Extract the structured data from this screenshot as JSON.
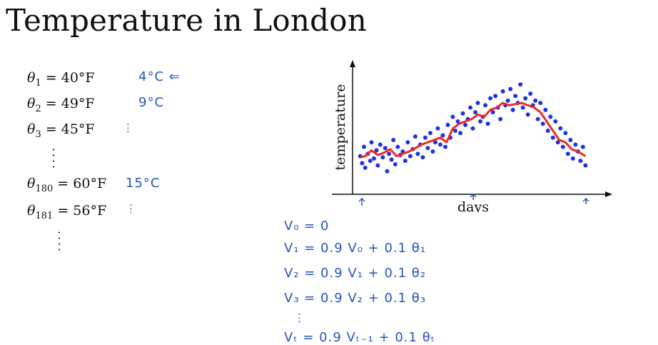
{
  "slide": {
    "title": "Temperature in London",
    "equations": [
      {
        "sym": "θ",
        "sub": "1",
        "rhs": "= 40°F",
        "note": "4°C ⇐"
      },
      {
        "sym": "θ",
        "sub": "2",
        "rhs": "= 49°F",
        "note": "9°C"
      },
      {
        "sym": "θ",
        "sub": "3",
        "rhs": "= 45°F",
        "note": "⋮"
      },
      {
        "sym": "θ",
        "sub": "180",
        "rhs": "= 60°F",
        "note": "15°C"
      },
      {
        "sym": "θ",
        "sub": "181",
        "rhs": "= 56°F",
        "note": "⋮"
      }
    ],
    "handwritten_formulas": [
      "V₀ = 0",
      "V₁ = 0.9 V₀    + 0.1 θ₁",
      "V₂ = 0.9 V₁    + 0.1 θ₂",
      "V₃ = 0.9 V₂    + 0.1 θ₃",
      "⋮",
      "Vₜ = 0.9 Vₜ₋₁  + 0.1 θₜ"
    ]
  },
  "chart_data": {
    "type": "scatter",
    "xlabel": "days",
    "ylabel": "temperature",
    "xlim": [
      0,
      365
    ],
    "ylim": [
      0,
      100
    ],
    "colors": {
      "points": "#1f35e0",
      "line": "#ee2a1f",
      "annotation": "#2a55b8"
    },
    "series": [
      {
        "values_x": [
          2,
          5,
          8,
          10,
          14,
          18,
          20,
          24,
          28,
          30,
          34,
          38,
          42,
          45,
          48,
          52,
          55,
          58,
          62,
          66,
          70,
          74,
          78,
          82,
          86,
          90,
          94,
          98,
          102,
          106,
          110,
          114,
          118,
          122,
          126,
          130,
          134,
          138,
          142,
          146,
          150,
          154,
          158,
          162,
          166,
          170,
          174,
          178,
          182,
          186,
          190,
          194,
          198,
          202,
          206,
          210,
          214,
          218,
          222,
          226,
          230,
          234,
          238,
          242,
          246,
          250,
          254,
          258,
          262,
          266,
          270,
          274,
          278,
          282,
          286,
          290,
          294,
          298,
          302,
          306,
          310,
          314,
          318,
          322,
          326,
          330,
          334,
          338,
          342,
          346,
          350,
          354,
          358,
          362
        ],
        "values_y": [
          28,
          22,
          36,
          18,
          30,
          24,
          40,
          26,
          33,
          20,
          38,
          27,
          35,
          15,
          30,
          25,
          42,
          21,
          36,
          29,
          32,
          24,
          40,
          28,
          34,
          45,
          30,
          38,
          27,
          44,
          35,
          48,
          32,
          40,
          52,
          38,
          46,
          36,
          55,
          44,
          62,
          50,
          58,
          48,
          65,
          55,
          60,
          70,
          52,
          66,
          74,
          58,
          62,
          72,
          56,
          78,
          66,
          80,
          70,
          60,
          84,
          72,
          76,
          86,
          68,
          80,
          74,
          90,
          70,
          78,
          64,
          82,
          72,
          76,
          60,
          74,
          56,
          68,
          50,
          62,
          44,
          58,
          40,
          52,
          36,
          48,
          30,
          42,
          26,
          38,
          32,
          24,
          36,
          20
        ]
      },
      {
        "values_x": [
          2,
          10,
          20,
          30,
          40,
          50,
          60,
          70,
          80,
          90,
          100,
          110,
          120,
          130,
          140,
          150,
          160,
          170,
          180,
          190,
          200,
          210,
          220,
          230,
          240,
          250,
          260,
          270,
          280,
          290,
          300,
          310,
          320,
          330,
          340,
          350,
          362
        ],
        "values_y": [
          27,
          28,
          33,
          29,
          31,
          34,
          28,
          30,
          32,
          35,
          38,
          40,
          42,
          44,
          40,
          52,
          56,
          58,
          60,
          64,
          62,
          68,
          70,
          74,
          72,
          73,
          74,
          72,
          70,
          66,
          58,
          50,
          42,
          40,
          34,
          32,
          28
        ]
      }
    ]
  }
}
